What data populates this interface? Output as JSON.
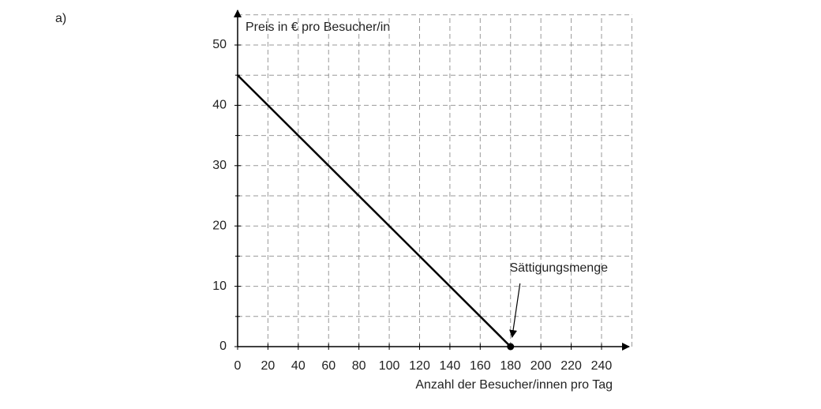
{
  "panel_label": "a)",
  "chart_data": {
    "type": "line",
    "y_label": "Preis in € pro Besucher/in",
    "x_label": "Anzahl der Besucher/innen pro Tag",
    "annotation": "Sättigungsmenge",
    "x": [
      0,
      180
    ],
    "values": [
      45,
      0
    ],
    "color": "#000000",
    "xlim": [
      0,
      260
    ],
    "xticks": [
      0,
      20,
      40,
      60,
      80,
      100,
      120,
      140,
      160,
      180,
      200,
      220,
      240
    ],
    "ylim": [
      0,
      55
    ],
    "yticks": [
      0,
      10,
      20,
      30,
      40,
      50
    ],
    "y_minor_ticks": [
      5,
      15,
      25,
      35,
      45,
      55
    ],
    "grid": true
  }
}
